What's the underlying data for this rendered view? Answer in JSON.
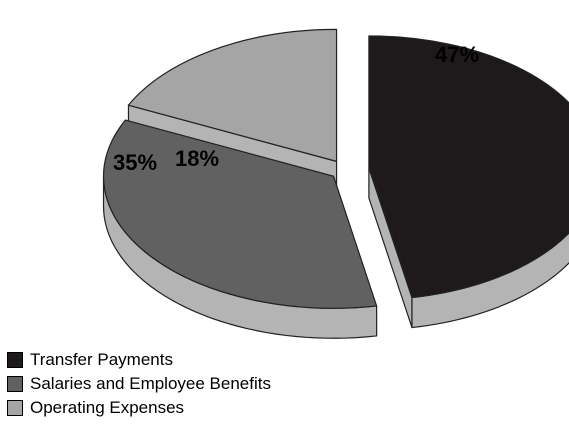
{
  "chart_data": {
    "type": "pie",
    "three_d": true,
    "exploded": true,
    "start_angle_deg": 90,
    "direction": "clockwise",
    "legend_position": "bottom-left",
    "slices": [
      {
        "label": "Transfer Payments",
        "value": 47,
        "display": "47%",
        "color": "#1e1a1b"
      },
      {
        "label": "Salaries and Employee Benefits",
        "value": 35,
        "display": "35%",
        "color": "#616161"
      },
      {
        "label": "Operating Expenses",
        "value": 18,
        "display": "18%",
        "color": "#a5a5a5"
      }
    ]
  }
}
